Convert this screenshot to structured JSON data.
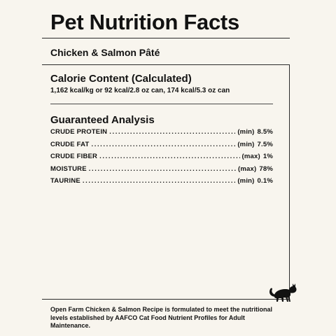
{
  "header": {
    "title": "Pet Nutrition Facts",
    "product_name": "Chicken & Salmon Pâté"
  },
  "calorie_content": {
    "heading": "Calorie Content (Calculated)",
    "text": "1,162 kcal/kg or 92 kcal/2.8 oz can, 174 kcal/5.3 oz can"
  },
  "guaranteed_analysis": {
    "heading": "Guaranteed Analysis",
    "rows": [
      {
        "nutrient": "CRUDE PROTEIN",
        "qualifier": "(min)",
        "amount": "8.5%"
      },
      {
        "nutrient": "CRUDE FAT",
        "qualifier": "(min)",
        "amount": "7.5%"
      },
      {
        "nutrient": "CRUDE FIBER",
        "qualifier": "(max)",
        "amount": "1%"
      },
      {
        "nutrient": "MOISTURE",
        "qualifier": "(max)",
        "amount": "78%"
      },
      {
        "nutrient": "TAURINE",
        "qualifier": "(min)",
        "amount": "0.1%"
      }
    ]
  },
  "footer": {
    "statement": "Open Farm Chicken & Salmon Recipe is formulated to meet the nutritional levels established by AAFCO Cat Food Nutrient Profiles for Adult Maintenance."
  },
  "icons": {
    "cat": "cat-silhouette-icon"
  },
  "colors": {
    "background": "#f8f5ee",
    "text": "#121212"
  }
}
